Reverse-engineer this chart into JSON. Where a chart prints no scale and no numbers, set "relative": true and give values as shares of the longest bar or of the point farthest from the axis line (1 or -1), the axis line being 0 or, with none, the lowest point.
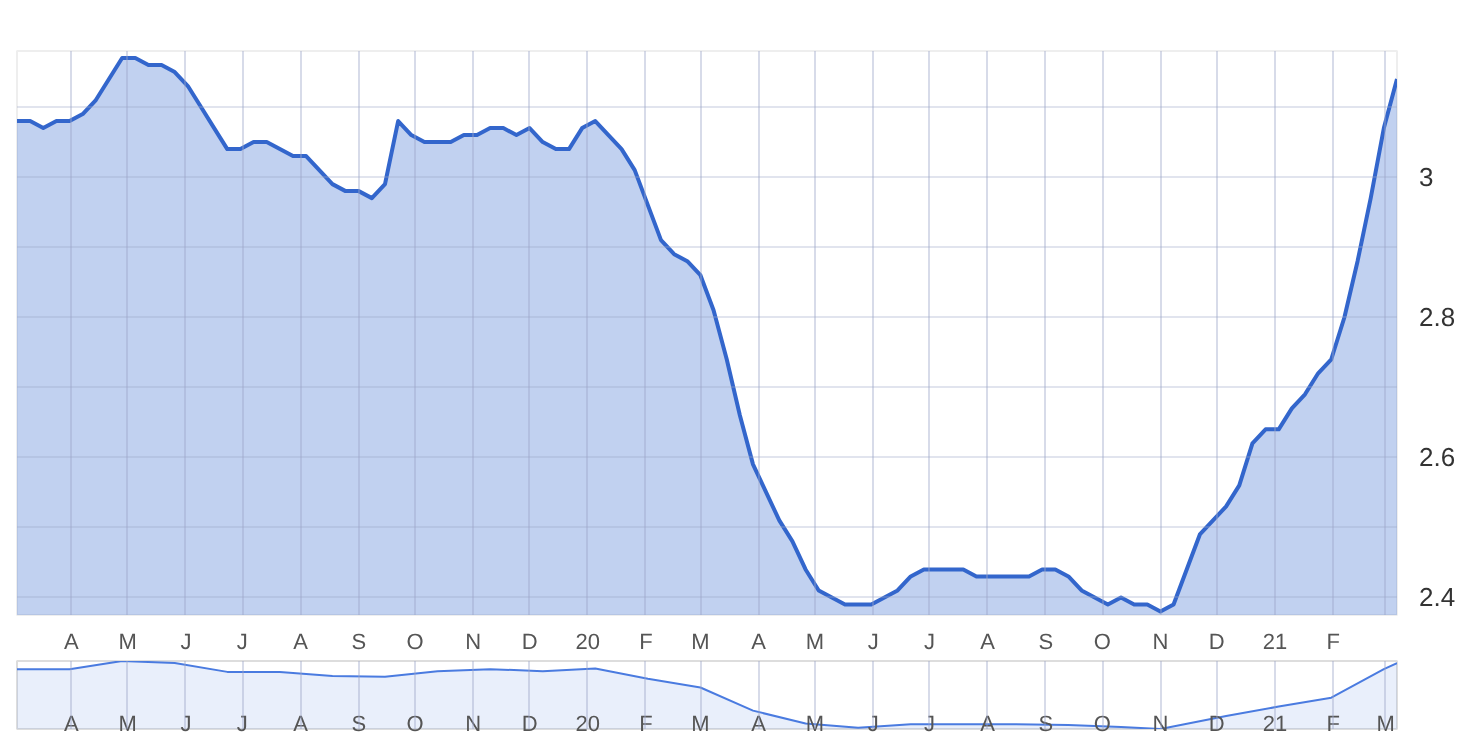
{
  "chart_data": [
    {
      "type": "area",
      "color": "#3366cc",
      "grid": true,
      "ylim": [
        2.375,
        3.18
      ],
      "yticks": [
        {
          "value": 2.4,
          "label": "2.4"
        },
        {
          "value": 2.5,
          "label": null
        },
        {
          "value": 2.6,
          "label": "2.6"
        },
        {
          "value": 2.7,
          "label": null
        },
        {
          "value": 2.8,
          "label": "2.8"
        },
        {
          "value": 2.9,
          "label": null
        },
        {
          "value": 3.0,
          "label": "3"
        },
        {
          "value": 3.1,
          "label": null
        }
      ],
      "xlim": [
        "2019-03-03",
        "2021-03-07"
      ],
      "xticks": [
        {
          "value": "2019-04",
          "label": "A"
        },
        {
          "value": "2019-05",
          "label": "M"
        },
        {
          "value": "2019-06",
          "label": "J"
        },
        {
          "value": "2019-07",
          "label": "J"
        },
        {
          "value": "2019-08",
          "label": "A"
        },
        {
          "value": "2019-09",
          "label": "S"
        },
        {
          "value": "2019-10",
          "label": "O"
        },
        {
          "value": "2019-11",
          "label": "N"
        },
        {
          "value": "2019-12",
          "label": "D"
        },
        {
          "value": "2020-01",
          "label": "20"
        },
        {
          "value": "2020-02",
          "label": "F"
        },
        {
          "value": "2020-03",
          "label": "M"
        },
        {
          "value": "2020-04",
          "label": "A"
        },
        {
          "value": "2020-05",
          "label": "M"
        },
        {
          "value": "2020-06",
          "label": "J"
        },
        {
          "value": "2020-07",
          "label": "J"
        },
        {
          "value": "2020-08",
          "label": "A"
        },
        {
          "value": "2020-09",
          "label": "S"
        },
        {
          "value": "2020-10",
          "label": "O"
        },
        {
          "value": "2020-11",
          "label": "N"
        },
        {
          "value": "2020-12",
          "label": "D"
        },
        {
          "value": "2021-01",
          "label": "21"
        },
        {
          "value": "2021-02",
          "label": "F"
        },
        {
          "value": "2021-03",
          "label": null
        }
      ],
      "x": [
        "2019-03-03",
        "2019-03-10",
        "2019-03-17",
        "2019-03-24",
        "2019-03-31",
        "2019-04-07",
        "2019-04-14",
        "2019-04-21",
        "2019-04-28",
        "2019-05-05",
        "2019-05-12",
        "2019-05-19",
        "2019-05-26",
        "2019-06-02",
        "2019-06-09",
        "2019-06-16",
        "2019-06-23",
        "2019-06-30",
        "2019-07-07",
        "2019-07-14",
        "2019-07-21",
        "2019-07-28",
        "2019-08-04",
        "2019-08-11",
        "2019-08-18",
        "2019-08-25",
        "2019-09-01",
        "2019-09-08",
        "2019-09-15",
        "2019-09-22",
        "2019-09-29",
        "2019-10-06",
        "2019-10-13",
        "2019-10-20",
        "2019-10-27",
        "2019-11-03",
        "2019-11-10",
        "2019-11-17",
        "2019-11-24",
        "2019-12-01",
        "2019-12-08",
        "2019-12-15",
        "2019-12-22",
        "2019-12-29",
        "2020-01-05",
        "2020-01-12",
        "2020-01-19",
        "2020-01-26",
        "2020-02-02",
        "2020-02-09",
        "2020-02-16",
        "2020-02-23",
        "2020-03-01",
        "2020-03-08",
        "2020-03-15",
        "2020-03-22",
        "2020-03-29",
        "2020-04-05",
        "2020-04-12",
        "2020-04-19",
        "2020-04-26",
        "2020-05-03",
        "2020-05-10",
        "2020-05-17",
        "2020-05-24",
        "2020-05-31",
        "2020-06-07",
        "2020-06-14",
        "2020-06-21",
        "2020-06-28",
        "2020-07-05",
        "2020-07-12",
        "2020-07-19",
        "2020-07-26",
        "2020-08-02",
        "2020-08-09",
        "2020-08-16",
        "2020-08-23",
        "2020-08-30",
        "2020-09-06",
        "2020-09-13",
        "2020-09-20",
        "2020-09-27",
        "2020-10-04",
        "2020-10-11",
        "2020-10-18",
        "2020-10-25",
        "2020-11-01",
        "2020-11-08",
        "2020-11-15",
        "2020-11-22",
        "2020-11-29",
        "2020-12-06",
        "2020-12-13",
        "2020-12-20",
        "2020-12-27",
        "2021-01-03",
        "2021-01-10",
        "2021-01-17",
        "2021-01-24",
        "2021-01-31",
        "2021-02-07",
        "2021-02-14",
        "2021-02-21",
        "2021-02-28",
        "2021-03-07"
      ],
      "values": [
        3.08,
        3.08,
        3.07,
        3.08,
        3.08,
        3.09,
        3.11,
        3.14,
        3.17,
        3.17,
        3.16,
        3.16,
        3.15,
        3.13,
        3.1,
        3.07,
        3.04,
        3.04,
        3.05,
        3.05,
        3.04,
        3.03,
        3.03,
        3.01,
        2.99,
        2.98,
        2.98,
        2.97,
        2.99,
        3.08,
        3.06,
        3.05,
        3.05,
        3.05,
        3.06,
        3.06,
        3.07,
        3.07,
        3.06,
        3.07,
        3.05,
        3.04,
        3.04,
        3.07,
        3.08,
        3.06,
        3.04,
        3.01,
        2.96,
        2.91,
        2.89,
        2.88,
        2.86,
        2.81,
        2.74,
        2.66,
        2.59,
        2.55,
        2.51,
        2.48,
        2.44,
        2.41,
        2.4,
        2.39,
        2.39,
        2.39,
        2.4,
        2.41,
        2.43,
        2.44,
        2.44,
        2.44,
        2.44,
        2.43,
        2.43,
        2.43,
        2.43,
        2.43,
        2.44,
        2.44,
        2.43,
        2.41,
        2.4,
        2.39,
        2.4,
        2.39,
        2.39,
        2.38,
        2.39,
        2.44,
        2.49,
        2.51,
        2.53,
        2.56,
        2.62,
        2.64,
        2.64,
        2.67,
        2.69,
        2.72,
        2.74,
        2.8,
        2.88,
        2.97,
        3.07,
        3.14
      ]
    },
    {
      "type": "area",
      "relative": true,
      "color": "#4a7be0",
      "grid": "x",
      "xlim": [
        "2019-03-03",
        "2021-03-07"
      ],
      "xticks": [
        {
          "value": "2019-04",
          "label": "A"
        },
        {
          "value": "2019-05",
          "label": "M"
        },
        {
          "value": "2019-06",
          "label": "J"
        },
        {
          "value": "2019-07",
          "label": "J"
        },
        {
          "value": "2019-08",
          "label": "A"
        },
        {
          "value": "2019-09",
          "label": "S"
        },
        {
          "value": "2019-10",
          "label": "O"
        },
        {
          "value": "2019-11",
          "label": "N"
        },
        {
          "value": "2019-12",
          "label": "D"
        },
        {
          "value": "2020-01",
          "label": "20"
        },
        {
          "value": "2020-02",
          "label": "F"
        },
        {
          "value": "2020-03",
          "label": "M"
        },
        {
          "value": "2020-04",
          "label": "A"
        },
        {
          "value": "2020-05",
          "label": "M"
        },
        {
          "value": "2020-06",
          "label": "J"
        },
        {
          "value": "2020-07",
          "label": "J"
        },
        {
          "value": "2020-08",
          "label": "A"
        },
        {
          "value": "2020-09",
          "label": "S"
        },
        {
          "value": "2020-10",
          "label": "O"
        },
        {
          "value": "2020-11",
          "label": "N"
        },
        {
          "value": "2020-12",
          "label": "D"
        },
        {
          "value": "2021-01",
          "label": "21"
        },
        {
          "value": "2021-02",
          "label": "F"
        },
        {
          "value": "2021-03",
          "label": "M"
        }
      ],
      "x": [
        "2019-03-03",
        "2019-03-31",
        "2019-04-28",
        "2019-05-26",
        "2019-06-23",
        "2019-07-21",
        "2019-08-18",
        "2019-09-15",
        "2019-10-13",
        "2019-11-10",
        "2019-12-08",
        "2020-01-05",
        "2020-02-02",
        "2020-03-01",
        "2020-03-29",
        "2020-04-26",
        "2020-05-24",
        "2020-06-21",
        "2020-07-19",
        "2020-08-16",
        "2020-09-13",
        "2020-10-11",
        "2020-11-01",
        "2020-12-06",
        "2021-01-03",
        "2021-01-31",
        "2021-02-28",
        "2021-03-07"
      ],
      "values": [
        0.88,
        0.88,
        1.0,
        0.97,
        0.84,
        0.84,
        0.78,
        0.77,
        0.85,
        0.88,
        0.85,
        0.89,
        0.74,
        0.61,
        0.27,
        0.08,
        0.02,
        0.07,
        0.07,
        0.07,
        0.06,
        0.03,
        0,
        0.19,
        0.33,
        0.46,
        0.88,
        0.97
      ]
    }
  ]
}
